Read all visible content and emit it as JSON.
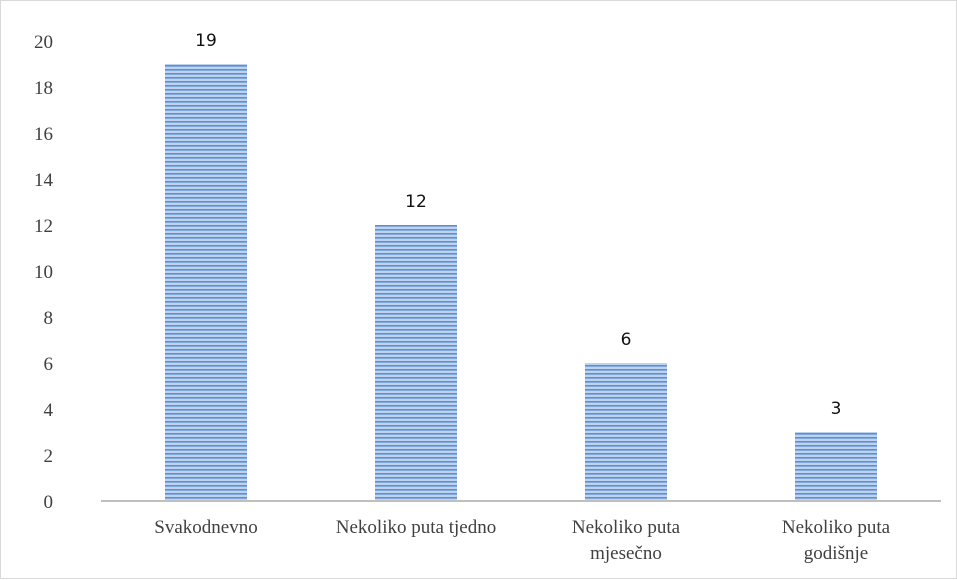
{
  "colors": {
    "bar_fill": "#bdd3ee",
    "bar_stripe": "#5b8ed6",
    "axis": "#bfbfbf",
    "text": "#404040"
  },
  "chart_data": {
    "type": "bar",
    "categories": [
      [
        "Svakodnevno"
      ],
      [
        "Nekoliko puta tjedno"
      ],
      [
        "Nekoliko puta",
        "mjesečno"
      ],
      [
        "Nekoliko puta",
        "godišnje"
      ]
    ],
    "values": [
      19,
      12,
      6,
      3
    ],
    "data_labels": [
      "19",
      "12",
      "6",
      "3"
    ],
    "title": "",
    "xlabel": "",
    "ylabel": "",
    "ylim": [
      0,
      20
    ],
    "yticks": [
      0,
      2,
      4,
      6,
      8,
      10,
      12,
      14,
      16,
      18,
      20
    ],
    "grid": false,
    "legend": "none",
    "bar_pattern": "horizontal-stripes"
  }
}
